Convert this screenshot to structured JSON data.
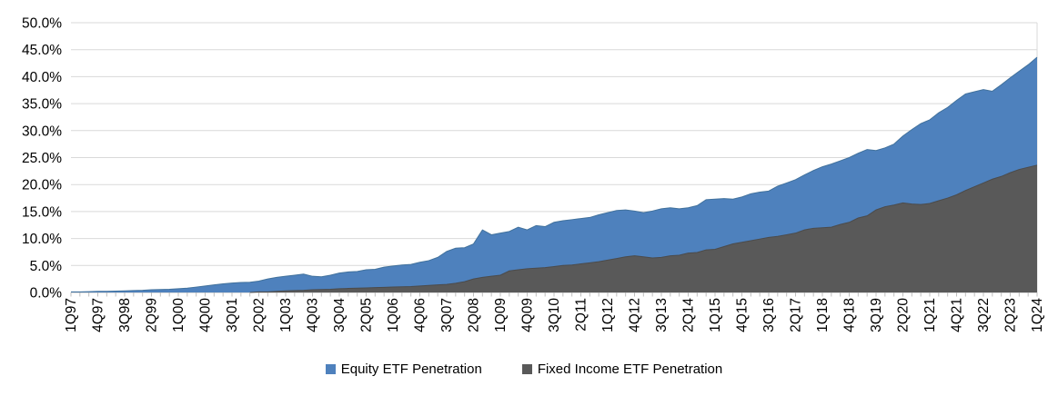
{
  "chart_data": {
    "type": "area",
    "title": "",
    "y_axis": {
      "min": 0,
      "max": 50,
      "step": 5,
      "tick_labels": [
        "0.0%",
        "5.0%",
        "10.0%",
        "15.0%",
        "20.0%",
        "25.0%",
        "30.0%",
        "35.0%",
        "40.0%",
        "45.0%",
        "50.0%"
      ]
    },
    "x_label_every_n": 3,
    "x_axis_visible_labels": [
      "1Q97",
      "4Q97",
      "3Q98",
      "2Q99",
      "1Q00",
      "4Q00",
      "3Q01",
      "2Q02",
      "1Q03",
      "4Q03",
      "3Q04",
      "2Q05",
      "1Q06",
      "4Q06",
      "3Q07",
      "2Q08",
      "1Q09",
      "4Q09",
      "3Q10",
      "2Q11",
      "1Q12",
      "4Q12",
      "3Q13",
      "2Q14",
      "1Q15",
      "4Q15",
      "3Q16",
      "2Q17",
      "1Q18",
      "4Q18",
      "3Q19",
      "2Q20",
      "1Q21",
      "4Q21",
      "3Q22",
      "2Q23",
      "1Q24"
    ],
    "x_categories": [
      "1Q97",
      "2Q97",
      "3Q97",
      "4Q97",
      "1Q98",
      "2Q98",
      "3Q98",
      "4Q98",
      "1Q99",
      "2Q99",
      "3Q99",
      "4Q99",
      "1Q00",
      "2Q00",
      "3Q00",
      "4Q00",
      "1Q01",
      "2Q01",
      "3Q01",
      "4Q01",
      "1Q02",
      "2Q02",
      "3Q02",
      "4Q02",
      "1Q03",
      "2Q03",
      "3Q03",
      "4Q03",
      "1Q04",
      "2Q04",
      "3Q04",
      "4Q04",
      "1Q05",
      "2Q05",
      "3Q05",
      "4Q05",
      "1Q06",
      "2Q06",
      "3Q06",
      "4Q06",
      "1Q07",
      "2Q07",
      "3Q07",
      "4Q07",
      "1Q08",
      "2Q08",
      "3Q08",
      "4Q08",
      "1Q09",
      "2Q09",
      "3Q09",
      "4Q09",
      "1Q10",
      "2Q10",
      "3Q10",
      "4Q10",
      "1Q11",
      "2Q11",
      "3Q11",
      "4Q11",
      "1Q12",
      "2Q12",
      "3Q12",
      "4Q12",
      "1Q13",
      "2Q13",
      "3Q13",
      "4Q13",
      "1Q14",
      "2Q14",
      "3Q14",
      "4Q14",
      "1Q15",
      "2Q15",
      "3Q15",
      "4Q15",
      "1Q16",
      "2Q16",
      "3Q16",
      "4Q16",
      "1Q17",
      "2Q17",
      "3Q17",
      "4Q17",
      "1Q18",
      "2Q18",
      "3Q18",
      "4Q18",
      "1Q19",
      "2Q19",
      "3Q19",
      "4Q19",
      "1Q20",
      "2Q20",
      "3Q20",
      "4Q20",
      "1Q21",
      "2Q21",
      "3Q21",
      "4Q21",
      "1Q22",
      "2Q22",
      "3Q22",
      "4Q22",
      "1Q23",
      "2Q23",
      "3Q23",
      "4Q23",
      "1Q24"
    ],
    "series": [
      {
        "name": "Equity ETF Penetration",
        "color": "#4E81BD",
        "edge_color": "#41719C",
        "values": [
          0.1,
          0.1,
          0.15,
          0.2,
          0.2,
          0.25,
          0.3,
          0.35,
          0.4,
          0.5,
          0.55,
          0.6,
          0.7,
          0.8,
          1.0,
          1.2,
          1.4,
          1.6,
          1.75,
          1.85,
          1.9,
          2.1,
          2.5,
          2.8,
          3.0,
          3.2,
          3.4,
          3.0,
          2.9,
          3.2,
          3.6,
          3.8,
          3.9,
          4.2,
          4.3,
          4.7,
          4.9,
          5.1,
          5.2,
          5.6,
          5.9,
          6.5,
          7.6,
          8.2,
          8.3,
          9.0,
          11.6,
          10.7,
          11.0,
          11.3,
          12.1,
          11.6,
          12.4,
          12.2,
          13.0,
          13.3,
          13.5,
          13.7,
          13.9,
          14.4,
          14.8,
          15.2,
          15.3,
          15.1,
          14.8,
          15.1,
          15.5,
          15.7,
          15.5,
          15.7,
          16.1,
          17.2,
          17.3,
          17.4,
          17.3,
          17.7,
          18.3,
          18.6,
          18.8,
          19.7,
          20.3,
          20.9,
          21.8,
          22.6,
          23.3,
          23.8,
          24.4,
          25.0,
          25.8,
          26.5,
          26.3,
          26.8,
          27.5,
          29.0,
          30.2,
          31.3,
          32.0,
          33.3,
          34.3,
          35.6,
          36.8,
          37.2,
          37.6,
          37.3,
          38.5,
          39.8,
          41.0,
          42.2,
          43.6
        ]
      },
      {
        "name": "Fixed Income ETF Penetration",
        "color": "#595959",
        "edge_color": "#4B4B4B",
        "values": [
          0,
          0,
          0,
          0,
          0,
          0,
          0,
          0,
          0,
          0,
          0,
          0,
          0,
          0,
          0,
          0,
          0,
          0,
          0,
          0,
          0,
          0.1,
          0.1,
          0.2,
          0.3,
          0.35,
          0.4,
          0.5,
          0.55,
          0.6,
          0.7,
          0.75,
          0.8,
          0.85,
          0.9,
          0.95,
          1.0,
          1.05,
          1.1,
          1.2,
          1.3,
          1.4,
          1.5,
          1.7,
          2.0,
          2.5,
          2.8,
          3.0,
          3.2,
          4.0,
          4.2,
          4.4,
          4.5,
          4.6,
          4.8,
          5.0,
          5.1,
          5.3,
          5.5,
          5.7,
          6.0,
          6.3,
          6.6,
          6.8,
          6.6,
          6.4,
          6.5,
          6.8,
          6.9,
          7.3,
          7.4,
          7.9,
          8.0,
          8.5,
          9.0,
          9.3,
          9.6,
          9.9,
          10.2,
          10.4,
          10.7,
          11.0,
          11.6,
          11.9,
          12.0,
          12.1,
          12.6,
          13.0,
          13.8,
          14.2,
          15.3,
          15.9,
          16.2,
          16.6,
          16.4,
          16.3,
          16.5,
          17.0,
          17.5,
          18.1,
          18.9,
          19.6,
          20.3,
          21.0,
          21.5,
          22.2,
          22.8,
          23.2,
          23.6
        ]
      }
    ],
    "grid": true,
    "legend_position": "bottom"
  },
  "legend": {
    "items": [
      {
        "label": "Equity ETF Penetration",
        "color": "#4E81BD"
      },
      {
        "label": "Fixed Income ETF Penetration",
        "color": "#595959"
      }
    ]
  },
  "colors": {
    "background": "#FFFFFF",
    "gridline": "#D9D9D9",
    "axis": "#BFBFBF",
    "text": "#000000"
  }
}
